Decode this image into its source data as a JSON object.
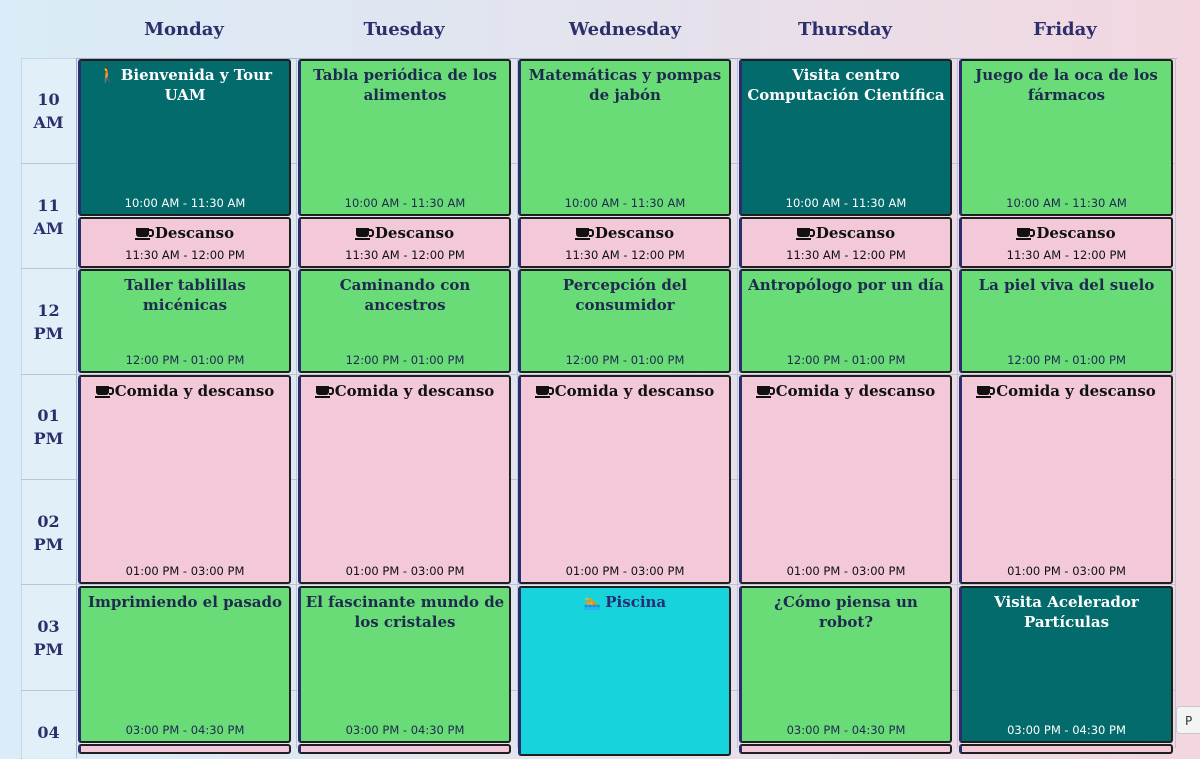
{
  "days": [
    "Monday",
    "Tuesday",
    "Wednesday",
    "Thursday",
    "Friday"
  ],
  "hours": [
    {
      "num": "10",
      "ampm": "AM"
    },
    {
      "num": "11",
      "ampm": "AM"
    },
    {
      "num": "12",
      "ampm": "PM"
    },
    {
      "num": "01",
      "ampm": "PM"
    },
    {
      "num": "02",
      "ampm": "PM"
    },
    {
      "num": "03",
      "ampm": "PM"
    },
    {
      "num": "04",
      "ampm": ""
    }
  ],
  "colors": {
    "activity": "#69dc78",
    "visit": "#036b6b",
    "break": "#f3c9d9",
    "pool": "#17d3dc",
    "header": "#2d2f6b"
  },
  "events": {
    "mon_1": {
      "title": "Bienvenida y Tour UAM",
      "time": "10:00 AM - 11:30 AM",
      "icon": "walking-icon"
    },
    "mon_2": {
      "title": "Descanso",
      "time": "11:30 AM - 12:00 PM",
      "icon": "coffee-icon"
    },
    "mon_3": {
      "title": "Taller tablillas micénicas",
      "time": "12:00 PM - 01:00 PM"
    },
    "mon_4": {
      "title": "Comida y descanso",
      "time": "01:00 PM - 03:00 PM",
      "icon": "coffee-icon"
    },
    "mon_5": {
      "title": "Imprimiendo el pasado",
      "time": "03:00 PM - 04:30 PM"
    },
    "tue_1": {
      "title": "Tabla periódica de los alimentos",
      "time": "10:00 AM - 11:30 AM"
    },
    "tue_2": {
      "title": "Descanso",
      "time": "11:30 AM - 12:00 PM",
      "icon": "coffee-icon"
    },
    "tue_3": {
      "title": "Caminando con ancestros",
      "time": "12:00 PM - 01:00 PM"
    },
    "tue_4": {
      "title": "Comida y descanso",
      "time": "01:00 PM - 03:00 PM",
      "icon": "coffee-icon"
    },
    "tue_5": {
      "title": "El fascinante mundo de los cristales",
      "time": "03:00 PM - 04:30 PM"
    },
    "wed_1": {
      "title": "Matemáticas y pompas de jabón",
      "time": "10:00 AM - 11:30 AM"
    },
    "wed_2": {
      "title": "Descanso",
      "time": "11:30 AM - 12:00 PM",
      "icon": "coffee-icon"
    },
    "wed_3": {
      "title": "Percepción del consumidor",
      "time": "12:00 PM - 01:00 PM"
    },
    "wed_4": {
      "title": "Comida y descanso",
      "time": "01:00 PM - 03:00 PM",
      "icon": "coffee-icon"
    },
    "wed_5": {
      "title": "Piscina",
      "time": "",
      "icon": "swimmer-icon"
    },
    "thu_1": {
      "title": "Visita centro Computación Científica",
      "time": "10:00 AM - 11:30 AM"
    },
    "thu_2": {
      "title": "Descanso",
      "time": "11:30 AM - 12:00 PM",
      "icon": "coffee-icon"
    },
    "thu_3": {
      "title": "Antropólogo por un día",
      "time": "12:00 PM - 01:00 PM"
    },
    "thu_4": {
      "title": "Comida y descanso",
      "time": "01:00 PM - 03:00 PM",
      "icon": "coffee-icon"
    },
    "thu_5": {
      "title": "¿Cómo piensa un robot?",
      "time": "03:00 PM - 04:30 PM"
    },
    "fri_1": {
      "title": "Juego de la oca de los fármacos",
      "time": "10:00 AM - 11:30 AM"
    },
    "fri_2": {
      "title": "Descanso",
      "time": "11:30 AM - 12:00 PM",
      "icon": "coffee-icon"
    },
    "fri_3": {
      "title": "La piel viva del suelo",
      "time": "12:00 PM - 01:00 PM"
    },
    "fri_4": {
      "title": "Comida y descanso",
      "time": "01:00 PM - 03:00 PM",
      "icon": "coffee-icon"
    },
    "fri_5": {
      "title": "Visita Acelerador Partículas",
      "time": "03:00 PM - 04:30 PM"
    }
  },
  "scroll_chip": "P"
}
